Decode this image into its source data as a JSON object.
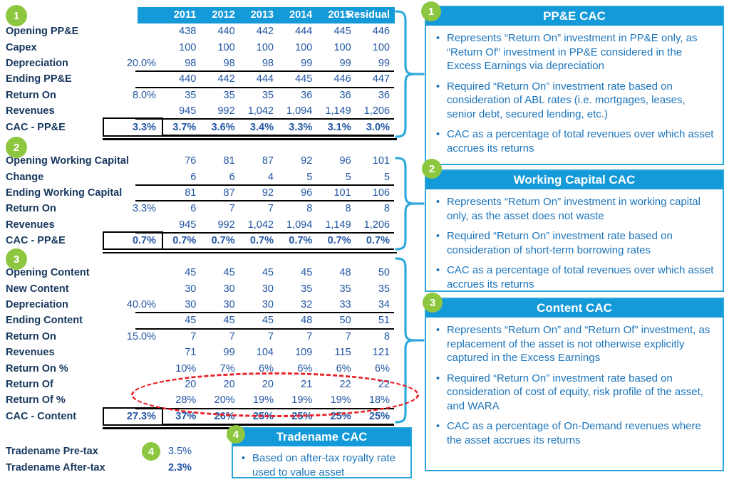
{
  "colors": {
    "header_blue": "#149AD9",
    "label_navy": "#17375E",
    "number_blue": "#2256A3",
    "bullet_blue": "#1C75BC",
    "badge_green": "#8DC63F",
    "highlight_red": "#EA2127",
    "brace_blue": "#2FA9DC"
  },
  "table": {
    "header_years": [
      "2011",
      "2012",
      "2013",
      "2014",
      "2015",
      "Residual"
    ],
    "sections": [
      {
        "badge": "1",
        "rows": [
          {
            "label": "Opening PP&E",
            "assumption": "",
            "values": [
              "438",
              "440",
              "442",
              "444",
              "445",
              "446"
            ]
          },
          {
            "label": "Capex",
            "assumption": "",
            "values": [
              "100",
              "100",
              "100",
              "100",
              "100",
              "100"
            ]
          },
          {
            "label": "Depreciation",
            "assumption": "20.0%",
            "values": [
              "98",
              "98",
              "98",
              "99",
              "99",
              "99"
            ],
            "underline": true
          },
          {
            "label": "Ending PP&E",
            "assumption": "",
            "values": [
              "440",
              "442",
              "444",
              "445",
              "446",
              "447"
            ],
            "underline": true
          },
          {
            "label": "Return On",
            "assumption": "8.0%",
            "values": [
              "35",
              "35",
              "35",
              "36",
              "36",
              "36"
            ]
          },
          {
            "label": "Revenues",
            "assumption": "",
            "values": [
              "945",
              "992",
              "1,042",
              "1,094",
              "1,149",
              "1,206"
            ],
            "underline": true
          },
          {
            "label": "CAC - PP&E",
            "assumption": "3.3%",
            "values": [
              "3.7%",
              "3.6%",
              "3.4%",
              "3.3%",
              "3.1%",
              "3.0%"
            ],
            "cac": true
          }
        ]
      },
      {
        "badge": "2",
        "rows": [
          {
            "label": "Opening Working Capital",
            "assumption": "",
            "values": [
              "76",
              "81",
              "87",
              "92",
              "96",
              "101"
            ]
          },
          {
            "label": "Change",
            "assumption": "",
            "values": [
              "6",
              "6",
              "4",
              "5",
              "5",
              "5"
            ],
            "underline": true
          },
          {
            "label": "Ending Working Capital",
            "assumption": "",
            "values": [
              "81",
              "87",
              "92",
              "96",
              "101",
              "106"
            ],
            "underline": true
          },
          {
            "label": "Return On",
            "assumption": "3.3%",
            "values": [
              "6",
              "7",
              "7",
              "8",
              "8",
              "8"
            ]
          },
          {
            "label": "Revenues",
            "assumption": "",
            "values": [
              "945",
              "992",
              "1,042",
              "1,094",
              "1,149",
              "1,206"
            ],
            "underline": true
          },
          {
            "label": "CAC - PP&E",
            "assumption": "0.7%",
            "values": [
              "0.7%",
              "0.7%",
              "0.7%",
              "0.7%",
              "0.7%",
              "0.7%"
            ],
            "cac": true
          }
        ]
      },
      {
        "badge": "3",
        "rows": [
          {
            "label": "Opening Content",
            "assumption": "",
            "values": [
              "45",
              "45",
              "45",
              "45",
              "48",
              "50"
            ]
          },
          {
            "label": "New Content",
            "assumption": "",
            "values": [
              "30",
              "30",
              "30",
              "35",
              "35",
              "35"
            ]
          },
          {
            "label": "Depreciation",
            "assumption": "40.0%",
            "values": [
              "30",
              "30",
              "30",
              "32",
              "33",
              "34"
            ],
            "underline": true
          },
          {
            "label": "Ending Content",
            "assumption": "",
            "values": [
              "45",
              "45",
              "45",
              "48",
              "50",
              "51"
            ],
            "underline": true
          },
          {
            "label": "Return On",
            "assumption": "15.0%",
            "values": [
              "7",
              "7",
              "7",
              "7",
              "7",
              "8"
            ]
          },
          {
            "label": "Revenues",
            "assumption": "",
            "values": [
              "71",
              "99",
              "104",
              "109",
              "115",
              "121"
            ]
          },
          {
            "label": "Return On %",
            "assumption": "",
            "values": [
              "10%",
              "7%",
              "6%",
              "6%",
              "6%",
              "6%"
            ]
          },
          {
            "label": "Return Of",
            "assumption": "",
            "values": [
              "20",
              "20",
              "20",
              "21",
              "22",
              "22"
            ]
          },
          {
            "label": "Return Of %",
            "assumption": "",
            "values": [
              "28%",
              "20%",
              "19%",
              "19%",
              "19%",
              "18%"
            ],
            "underline": true
          },
          {
            "label": "CAC - Content",
            "assumption": "27.3%",
            "values": [
              "37%",
              "26%",
              "25%",
              "25%",
              "25%",
              "25%"
            ],
            "cac": true
          }
        ]
      }
    ]
  },
  "tradename": {
    "badge": "4",
    "rows": [
      {
        "label": "Tradename Pre-tax",
        "value": "3.5%",
        "bold": false
      },
      {
        "label": "Tradename After-tax",
        "value": "2.3%",
        "bold": true
      }
    ]
  },
  "callouts": [
    {
      "badge": "1",
      "title": "PP&E CAC",
      "bullets": [
        "Represents “Return On” investment in PP&E only, as “Return Of” investment in PP&E considered in the Excess Earnings via depreciation",
        "Required “Return On” investment rate based on consideration of ABL rates (i.e. mortgages, leases, senior debt, secured lending, etc.)",
        "CAC as a percentage of total revenues over which asset accrues its returns"
      ]
    },
    {
      "badge": "2",
      "title": "Working Capital CAC",
      "bullets": [
        "Represents “Return On” investment in working capital only, as the asset does not waste",
        "Required “Return On” investment rate based on consideration of short-term borrowing rates",
        "CAC as a percentage of total revenues over which asset accrues its returns"
      ]
    },
    {
      "badge": "3",
      "title": "Content CAC",
      "bullets": [
        "Represents “Return On” and “Return Of” investment, as replacement of the asset is not otherwise explicitly captured in the Excess Earnings",
        "Required “Return On” investment rate based on consideration of cost of equity, risk profile of the asset, and WARA",
        "CAC as a percentage of On-Demand revenues where the asset accrues its returns"
      ]
    },
    {
      "badge": "4",
      "title": "Tradename CAC",
      "bullets": [
        "Based on after-tax royalty rate used to value asset"
      ]
    }
  ],
  "bullet_glyph": "•"
}
